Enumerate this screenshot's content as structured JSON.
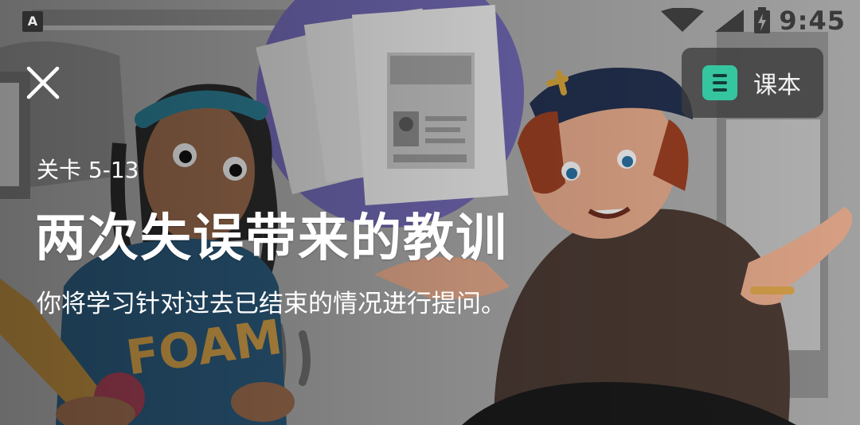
{
  "status_bar": {
    "time": "9:45",
    "app_badge": "A",
    "icons": [
      "wifi-icon",
      "signal-icon",
      "battery-icon"
    ]
  },
  "header": {
    "close_icon": "close-icon",
    "book_button_label": "课本",
    "book_icon": "list-book-icon"
  },
  "lesson": {
    "level": "关卡 5-13",
    "title": "两次失误带来的教训",
    "description": "你将学习针对过去已结束的情况进行提问。"
  },
  "illustration": {
    "hoodie_text": "FOAM"
  },
  "colors": {
    "accent": "#35c6a0",
    "text": "#ffffff",
    "button_bg": "#3c3c3c"
  }
}
